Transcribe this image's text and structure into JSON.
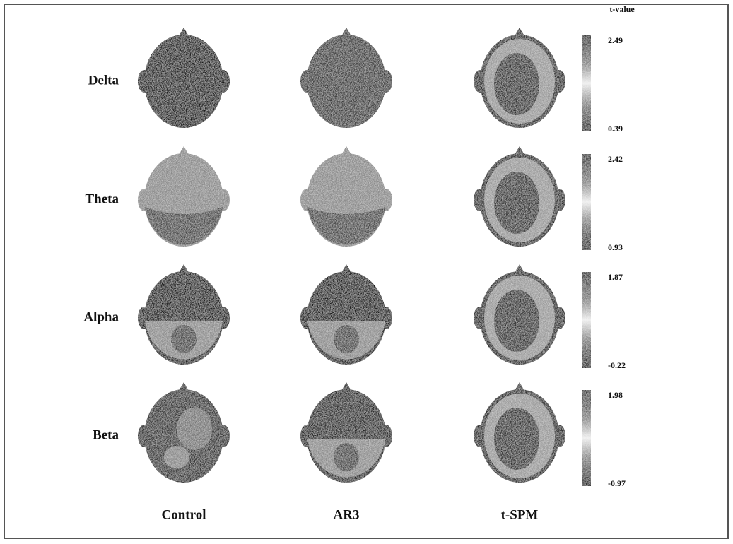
{
  "header": {
    "colorbar_title": "t-value"
  },
  "rows": [
    {
      "label": "Delta",
      "max": "2.49",
      "min": "0.39"
    },
    {
      "label": "Theta",
      "max": "2.42",
      "min": "0.93"
    },
    {
      "label": "Alpha",
      "max": "1.87",
      "min": "-0.22"
    },
    {
      "label": "Beta",
      "max": "1.98",
      "min": "-0.97"
    }
  ],
  "columns": [
    "Control",
    "AR3",
    "t-SPM"
  ]
}
